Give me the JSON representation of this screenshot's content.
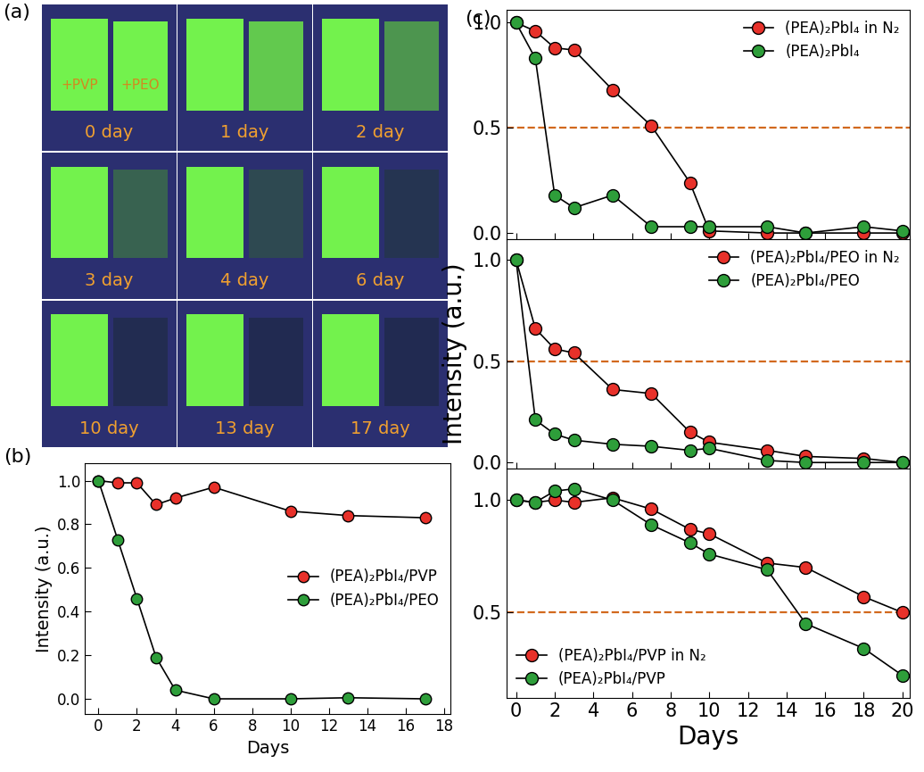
{
  "chart_data": [
    {
      "type": "photo_grid",
      "title": "(a)",
      "sample_labels": [
        "+PVP",
        "+PEO"
      ],
      "panel_labels": [
        "0 day",
        "1 day",
        "2 day",
        "3 day",
        "4 day",
        "6 day",
        "10 day",
        "13 day",
        "17 day"
      ]
    },
    {
      "type": "line",
      "title": "(b)",
      "x_label": "Days",
      "y_label": "Intensity (a.u.)",
      "x": [
        0,
        1,
        2,
        3,
        4,
        6,
        10,
        13,
        17
      ],
      "series": [
        {
          "name": "(PEA)₂PbI₄/PVP",
          "color": "#e8312a",
          "marker": "circle",
          "line_style": "solid",
          "values": [
            1.0,
            0.99,
            0.99,
            0.89,
            0.92,
            0.97,
            0.86,
            0.84,
            0.83
          ]
        },
        {
          "name": "(PEA)₂PbI₄/PEO",
          "color": "#2e9e3a",
          "marker": "circle",
          "line_style": "solid",
          "values": [
            1.0,
            0.73,
            0.46,
            0.19,
            0.04,
            0.0,
            0.0,
            0.005,
            0.0
          ]
        }
      ],
      "xlim": [
        -0.7,
        18.3
      ],
      "xticks": [
        0,
        2,
        4,
        6,
        8,
        10,
        12,
        14,
        16,
        18
      ],
      "ylim": [
        -0.07,
        1.08
      ],
      "yticks": [
        {
          "value": 0,
          "label": "0.0"
        },
        {
          "value": 0.2,
          "label": "0.2"
        },
        {
          "value": 0.4,
          "label": "0.4"
        },
        {
          "value": 0.6,
          "label": "0.6"
        },
        {
          "value": 0.8,
          "label": "0.8"
        },
        {
          "value": 1.0,
          "label": "1.0"
        }
      ],
      "legend": "center right"
    },
    {
      "type": "line",
      "title": "(c)",
      "tick_labels": "y",
      "x": [
        0,
        1,
        2,
        3,
        5,
        7,
        9,
        10,
        13,
        15,
        18,
        20
      ],
      "series": [
        {
          "name": "(PEA)₂PbI₄ in N₂",
          "color": "#e8312a",
          "marker": "circle",
          "line_style": "solid",
          "values": [
            1.0,
            0.96,
            0.88,
            0.87,
            0.68,
            0.51,
            0.24,
            0.01,
            0.0,
            0.0,
            0.0,
            0.0
          ]
        },
        {
          "name": "(PEA)₂PbI₄",
          "color": "#2e9e3a",
          "marker": "circle",
          "line_style": "solid",
          "values": [
            1.0,
            0.83,
            0.18,
            0.12,
            0.18,
            0.03,
            0.03,
            0.03,
            0.03,
            0.0,
            0.03,
            0.01
          ]
        }
      ],
      "threshold": 0.5,
      "xlim": [
        -0.5,
        20.4
      ],
      "xticks": [
        0,
        2,
        4,
        6,
        8,
        10,
        12,
        14,
        16,
        18,
        20
      ],
      "ylim": [
        -0.03,
        1.06
      ],
      "yticks": [
        {
          "value": 0,
          "label": "0.0"
        },
        {
          "value": 0.5,
          "label": "0.5"
        },
        {
          "value": 1.0,
          "label": "1.0"
        }
      ],
      "legend": "upper right"
    },
    {
      "type": "line",
      "y_label": "Intensity (a.u.)",
      "tick_labels": "y",
      "x": [
        0,
        1,
        2,
        3,
        5,
        7,
        9,
        10,
        13,
        15,
        18,
        20
      ],
      "series": [
        {
          "name": "(PEA)₂PbI₄/PEO in N₂",
          "color": "#e8312a",
          "marker": "circle",
          "line_style": "solid",
          "values": [
            1.0,
            0.66,
            0.56,
            0.54,
            0.36,
            0.34,
            0.15,
            0.1,
            0.06,
            0.03,
            0.02,
            0.0
          ]
        },
        {
          "name": "(PEA)₂PbI₄/PEO",
          "color": "#2e9e3a",
          "marker": "circle",
          "line_style": "solid",
          "values": [
            1.0,
            0.21,
            0.14,
            0.11,
            0.09,
            0.08,
            0.06,
            0.07,
            0.01,
            0.0,
            0.0,
            0.0
          ]
        }
      ],
      "threshold": 0.5,
      "xlim": [
        -0.5,
        20.4
      ],
      "xticks": [
        0,
        2,
        4,
        6,
        8,
        10,
        12,
        14,
        16,
        18,
        20
      ],
      "ylim": [
        -0.03,
        1.1
      ],
      "yticks": [
        {
          "value": 0,
          "label": "0.0"
        },
        {
          "value": 0.5,
          "label": "0.5"
        },
        {
          "value": 1.0,
          "label": "1.0"
        }
      ],
      "legend": "upper right"
    },
    {
      "type": "line",
      "x_label": "Days",
      "x": [
        0,
        1,
        2,
        3,
        5,
        7,
        9,
        10,
        13,
        15,
        18,
        20
      ],
      "series": [
        {
          "name": "(PEA)₂PbI₄/PVP in N₂",
          "color": "#e8312a",
          "marker": "circle",
          "line_style": "solid",
          "values": [
            1.0,
            0.99,
            1.0,
            0.99,
            1.01,
            0.96,
            0.87,
            0.85,
            0.72,
            0.7,
            0.57,
            0.5
          ]
        },
        {
          "name": "(PEA)₂PbI₄/PVP",
          "color": "#2e9e3a",
          "marker": "circle",
          "line_style": "solid",
          "values": [
            1.0,
            0.99,
            1.04,
            1.05,
            1.0,
            0.89,
            0.81,
            0.76,
            0.69,
            0.45,
            0.34,
            0.22
          ]
        }
      ],
      "threshold": 0.5,
      "xlim": [
        -0.5,
        20.4
      ],
      "xticks": [
        0,
        2,
        4,
        6,
        8,
        10,
        12,
        14,
        16,
        18,
        20
      ],
      "ylim": [
        0.12,
        1.14
      ],
      "yticks": [
        {
          "value": 0.5,
          "label": "0.5"
        },
        {
          "value": 1.0,
          "label": "1.0"
        }
      ],
      "legend": "lower left"
    }
  ]
}
